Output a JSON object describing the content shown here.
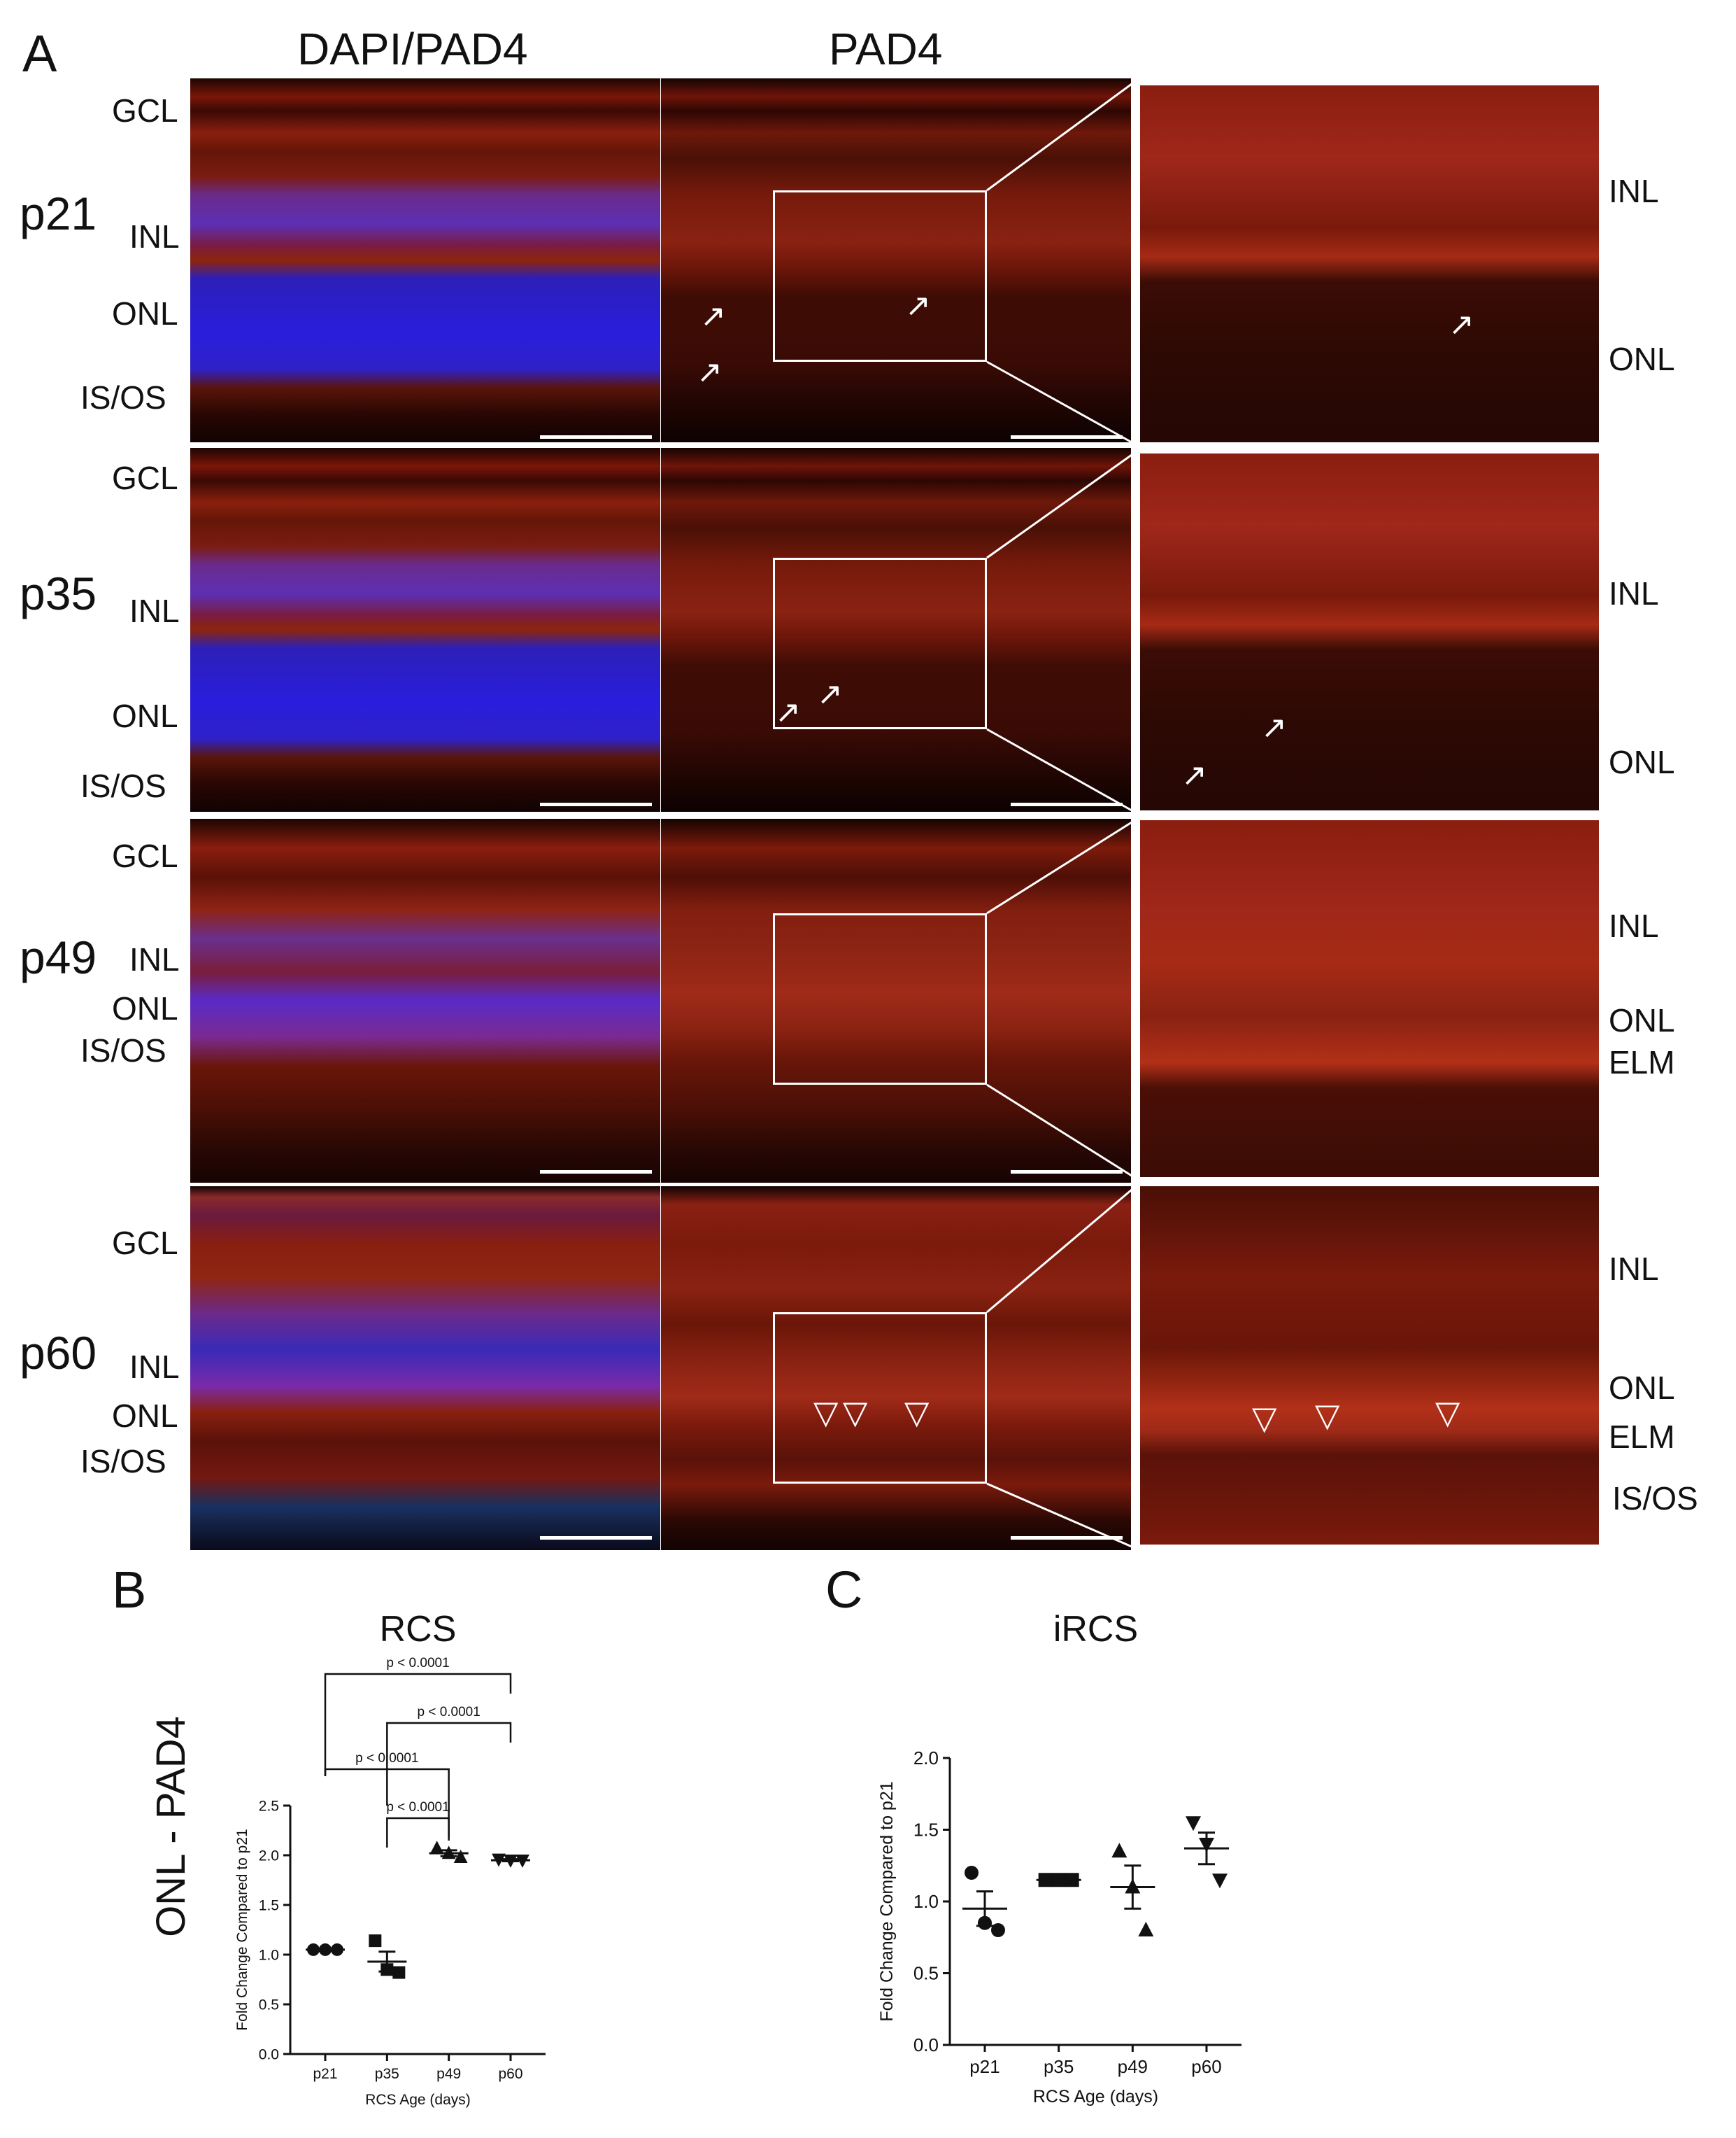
{
  "panel_labels": {
    "a": "A",
    "b": "B",
    "c": "C"
  },
  "column_headers": {
    "dapi_pad4": "DAPI/PAD4",
    "pad4": "PAD4"
  },
  "ages": [
    "p21",
    "p35",
    "p49",
    "p60"
  ],
  "row_layers": {
    "p21": [
      "GCL",
      "INL",
      "ONL",
      "IS/OS"
    ],
    "p35": [
      "GCL",
      "INL",
      "ONL",
      "IS/OS"
    ],
    "p49": [
      "GCL",
      "INL",
      "ONL",
      "IS/OS"
    ],
    "p60": [
      "GCL",
      "INL",
      "ONL",
      "IS/OS"
    ]
  },
  "zoom_layers": {
    "p21": [
      "INL",
      "ONL"
    ],
    "p35": [
      "INL",
      "ONL"
    ],
    "p49": [
      "INL",
      "ONL",
      "ELM"
    ],
    "p60": [
      "INL",
      "ONL",
      "ELM",
      "IS/OS"
    ]
  },
  "colors": {
    "nuclei_blue": "#2a1edd",
    "pad4_red": "#a62a15"
  },
  "icons": {
    "arrow": "arrow-icon",
    "triangle": "open-triangle-icon"
  },
  "section_b": {
    "ylabel_outer": "ONL - PAD4"
  },
  "chart_data": [
    {
      "type": "scatter",
      "title": "RCS",
      "xlabel": "RCS Age (days)",
      "ylabel": "Fold Change Compared to p21",
      "categories": [
        "p21",
        "p35",
        "p49",
        "p60"
      ],
      "ylim": [
        0,
        2.5
      ],
      "yticks": [
        "0.0",
        "0.5",
        "1.0",
        "1.5",
        "2.0",
        "2.5"
      ],
      "series": [
        {
          "marker": "circle",
          "category": "p21",
          "values": [
            1.05,
            1.05,
            1.05
          ],
          "mean": 1.05,
          "sem": 0.01
        },
        {
          "marker": "square",
          "category": "p35",
          "values": [
            1.14,
            0.85,
            0.82
          ],
          "mean": 0.93,
          "sem": 0.1
        },
        {
          "marker": "triangle-up",
          "category": "p49",
          "values": [
            2.07,
            2.02,
            1.98
          ],
          "mean": 2.02,
          "sem": 0.03
        },
        {
          "marker": "triangle-down",
          "category": "p60",
          "values": [
            1.96,
            1.95,
            1.95
          ],
          "mean": 1.95,
          "sem": 0.01
        }
      ],
      "significance": [
        {
          "from": "p21",
          "to": "p60",
          "label": "p < 0.0001"
        },
        {
          "from": "p35",
          "to": "p60",
          "label": "p < 0.0001"
        },
        {
          "from": "p21",
          "to": "p49",
          "label": "p < 0.0001"
        },
        {
          "from": "p35",
          "to": "p49",
          "label": "p < 0.0001"
        }
      ],
      "grid": false
    },
    {
      "type": "scatter",
      "title": "iRCS",
      "xlabel": "RCS Age (days)",
      "ylabel": "Fold  Change Compared to p21",
      "categories": [
        "p21",
        "p35",
        "p49",
        "p60"
      ],
      "ylim": [
        0,
        2.0
      ],
      "yticks": [
        "0.0",
        "0.5",
        "1.0",
        "1.5",
        "2.0"
      ],
      "series": [
        {
          "marker": "circle",
          "category": "p21",
          "values": [
            1.2,
            0.85,
            0.8
          ],
          "mean": 0.95,
          "sem": 0.12
        },
        {
          "marker": "square",
          "category": "p35",
          "values": [
            1.15,
            1.15,
            1.15
          ],
          "mean": 1.15,
          "sem": 0.01
        },
        {
          "marker": "triangle-up",
          "category": "p49",
          "values": [
            1.35,
            1.1,
            0.8
          ],
          "mean": 1.1,
          "sem": 0.15
        },
        {
          "marker": "triangle-down",
          "category": "p60",
          "values": [
            1.55,
            1.4,
            1.15
          ],
          "mean": 1.37,
          "sem": 0.11
        }
      ],
      "grid": false
    }
  ]
}
